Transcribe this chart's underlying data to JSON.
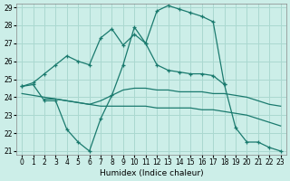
{
  "xlabel": "Humidex (Indice chaleur)",
  "bg_color": "#cceee8",
  "grid_color": "#aad8d0",
  "line_color": "#1a7a6e",
  "xlim": [
    -0.5,
    23.5
  ],
  "ylim": [
    20.8,
    29.2
  ],
  "yticks": [
    21,
    22,
    23,
    24,
    25,
    26,
    27,
    28,
    29
  ],
  "xticks": [
    0,
    1,
    2,
    3,
    4,
    5,
    6,
    7,
    8,
    9,
    10,
    11,
    12,
    13,
    14,
    15,
    16,
    17,
    18,
    19,
    20,
    21,
    22,
    23
  ],
  "lines": [
    {
      "x": [
        0,
        1,
        2,
        3,
        4,
        5,
        6,
        7,
        8,
        9,
        10,
        11,
        12,
        13,
        14,
        15,
        16,
        17,
        18
      ],
      "y": [
        24.6,
        24.8,
        25.3,
        25.8,
        26.3,
        26.0,
        25.8,
        27.3,
        27.8,
        26.9,
        27.5,
        27.0,
        25.8,
        25.5,
        25.4,
        25.3,
        25.3,
        25.2,
        24.7
      ],
      "marker": true
    },
    {
      "x": [
        0,
        1,
        2,
        3,
        4,
        5,
        6,
        7,
        8,
        9,
        10,
        11,
        12,
        13,
        14,
        15,
        16,
        17,
        18,
        19,
        20,
        21,
        22,
        23
      ],
      "y": [
        24.6,
        24.7,
        23.8,
        23.8,
        22.2,
        21.5,
        21.0,
        22.8,
        24.1,
        25.8,
        27.9,
        27.0,
        28.8,
        29.1,
        28.9,
        28.7,
        28.5,
        28.2,
        24.7,
        22.3,
        21.5,
        21.5,
        21.2,
        21.0
      ],
      "marker": true
    },
    {
      "x": [
        0,
        1,
        2,
        3,
        4,
        5,
        6,
        7,
        8,
        9,
        10,
        11,
        12,
        13,
        14,
        15,
        16,
        17,
        18,
        19,
        20,
        21,
        22,
        23
      ],
      "y": [
        24.2,
        24.1,
        24.0,
        23.9,
        23.8,
        23.7,
        23.6,
        23.5,
        23.5,
        23.5,
        23.5,
        23.5,
        23.4,
        23.4,
        23.4,
        23.4,
        23.3,
        23.3,
        23.2,
        23.1,
        23.0,
        22.8,
        22.6,
        22.4
      ],
      "marker": false
    },
    {
      "x": [
        2,
        3,
        4,
        5,
        6,
        7,
        8,
        9,
        10,
        11,
        12,
        13,
        14,
        15,
        16,
        17,
        18,
        19,
        20,
        21,
        22,
        23
      ],
      "y": [
        23.9,
        23.9,
        23.8,
        23.7,
        23.6,
        23.8,
        24.1,
        24.4,
        24.5,
        24.5,
        24.4,
        24.4,
        24.3,
        24.3,
        24.3,
        24.2,
        24.2,
        24.1,
        24.0,
        23.8,
        23.6,
        23.5
      ],
      "marker": false
    }
  ]
}
